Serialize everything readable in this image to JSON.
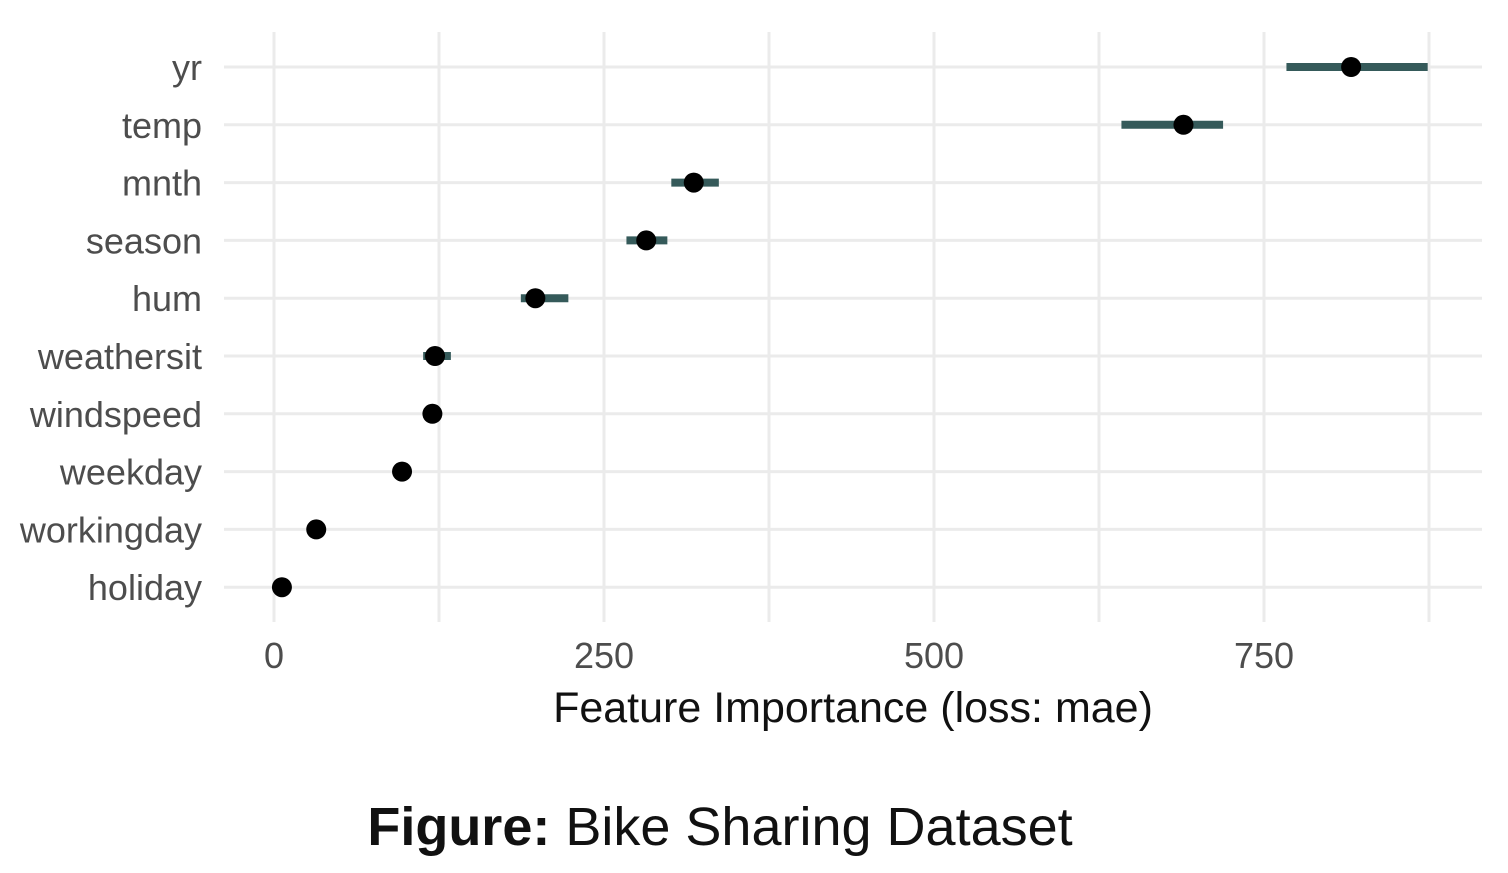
{
  "chart_data": {
    "type": "scatter",
    "subtype": "dot-with-interval",
    "xlabel": "Feature Importance (loss: mae)",
    "xlim": [
      -5,
      878
    ],
    "xticks": [
      0,
      250,
      500,
      750
    ],
    "grid": true,
    "features": [
      "yr",
      "temp",
      "mnth",
      "season",
      "hum",
      "weathersit",
      "windspeed",
      "weekday",
      "workingday",
      "holiday"
    ],
    "points": [
      {
        "feature": "yr",
        "value": 816,
        "low": 767,
        "high": 874
      },
      {
        "feature": "temp",
        "value": 689,
        "low": 642,
        "high": 719
      },
      {
        "feature": "mnth",
        "value": 318,
        "low": 301,
        "high": 337
      },
      {
        "feature": "season",
        "value": 282,
        "low": 267,
        "high": 298
      },
      {
        "feature": "hum",
        "value": 198,
        "low": 187,
        "high": 223
      },
      {
        "feature": "weathersit",
        "value": 122,
        "low": 113,
        "high": 134
      },
      {
        "feature": "windspeed",
        "value": 120,
        "low": 117,
        "high": 123
      },
      {
        "feature": "weekday",
        "value": 97,
        "low": 95,
        "high": 99
      },
      {
        "feature": "workingday",
        "value": 32,
        "low": 30,
        "high": 34
      },
      {
        "feature": "holiday",
        "value": 6,
        "low": 5,
        "high": 7
      }
    ],
    "colors": {
      "point": "#000000",
      "interval": "#355a5a",
      "grid": "#ebebeb",
      "tick_text": "#4d4d4d"
    }
  },
  "caption": {
    "label": "Figure:",
    "text": "Bike Sharing Dataset"
  }
}
